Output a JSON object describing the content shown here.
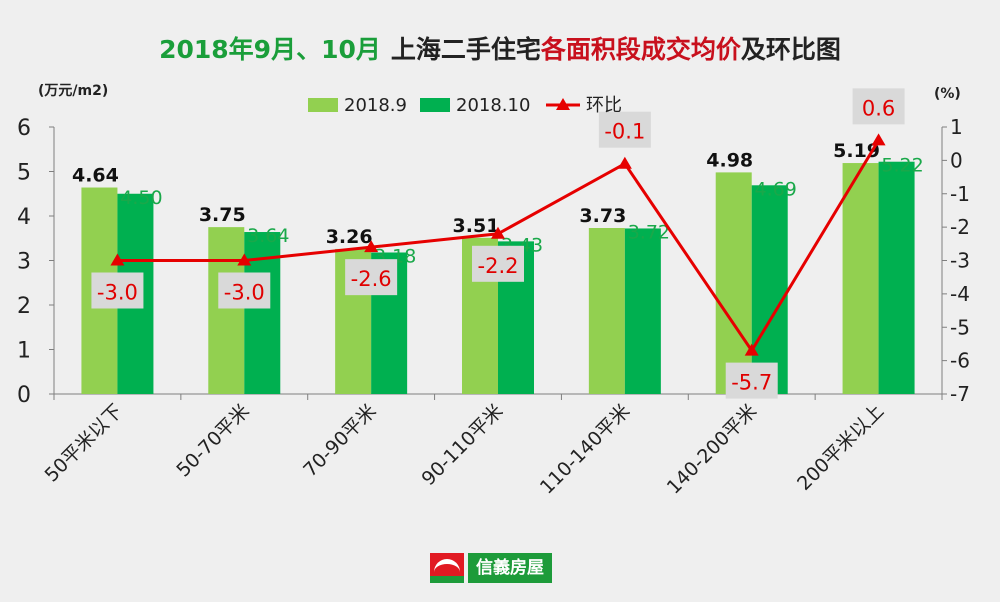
{
  "title": {
    "part1": "2018年9月、10月",
    "part2": "上海二手住宅",
    "part3": "各面积段成交均价",
    "part4": "及环比图"
  },
  "left_unit": "(万元/m2)",
  "right_unit": "(%)",
  "brand": "信義房屋",
  "colors": {
    "series_2018_9": "#92d050",
    "series_2018_10": "#00b050",
    "line": "#e60000",
    "label_old": "#111111",
    "label_new": "#1aa84a",
    "pct_label": "#e00000",
    "pct_label_bg": "#d9d9d9"
  },
  "chart_data": {
    "type": "bar",
    "categories": [
      "50平米以下",
      "50-70平米",
      "70-90平米",
      "90-110平米",
      "110-140平米",
      "140-200平米",
      "200平米以上"
    ],
    "series": [
      {
        "name": "2018.9",
        "values": [
          4.64,
          3.75,
          3.26,
          3.51,
          3.73,
          4.98,
          5.19
        ],
        "labels": [
          "4.64",
          "3.75",
          "3.26",
          "3.51",
          "3.73",
          "4.98",
          "5.19"
        ]
      },
      {
        "name": "2018.10",
        "values": [
          4.5,
          3.64,
          3.18,
          3.43,
          3.72,
          4.69,
          5.22
        ],
        "labels": [
          "4.50",
          "3.64",
          "3.18",
          "3.43",
          "3.72",
          "4.69",
          "5.22"
        ]
      }
    ],
    "line_series": {
      "name": "环比",
      "values": [
        -3.0,
        -3.0,
        -2.6,
        -2.2,
        -0.1,
        -5.7,
        0.6
      ],
      "labels": [
        "-3.0",
        "-3.0",
        "-2.6",
        "-2.2",
        "-0.1",
        "-5.7",
        "0.6"
      ]
    },
    "y_left": {
      "range": [
        0,
        6
      ],
      "ticks": [
        "0",
        "1",
        "2",
        "3",
        "4",
        "5",
        "6"
      ]
    },
    "y_right": {
      "range": [
        -7,
        1
      ],
      "ticks": [
        "1",
        "0",
        "-1",
        "-2",
        "-3",
        "-4",
        "-5",
        "-6",
        "-7"
      ]
    },
    "legend_position": "top-center"
  }
}
